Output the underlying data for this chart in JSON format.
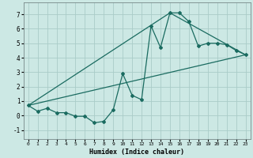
{
  "title": "",
  "xlabel": "Humidex (Indice chaleur)",
  "ylabel": "",
  "bg_color": "#cce8e4",
  "grid_color": "#aaccc8",
  "line_color": "#1a6b60",
  "xlim": [
    -0.5,
    23.5
  ],
  "ylim": [
    -1.6,
    7.8
  ],
  "xticks": [
    0,
    1,
    2,
    3,
    4,
    5,
    6,
    7,
    8,
    9,
    10,
    11,
    12,
    13,
    14,
    15,
    16,
    17,
    18,
    19,
    20,
    21,
    22,
    23
  ],
  "yticks": [
    -1,
    0,
    1,
    2,
    3,
    4,
    5,
    6,
    7
  ],
  "line1_x": [
    0,
    1,
    2,
    3,
    4,
    5,
    6,
    7,
    8,
    9,
    10,
    11,
    12,
    13,
    14,
    15,
    16,
    17,
    18,
    19,
    20,
    21,
    22,
    23
  ],
  "line1_y": [
    0.7,
    0.3,
    0.5,
    0.2,
    0.2,
    -0.05,
    -0.05,
    -0.5,
    -0.4,
    0.4,
    2.9,
    1.4,
    1.1,
    6.2,
    4.7,
    7.1,
    7.1,
    6.5,
    4.8,
    5.0,
    5.0,
    4.9,
    4.5,
    4.2
  ],
  "line2_x": [
    0,
    23
  ],
  "line2_y": [
    0.7,
    4.2
  ],
  "line3_x": [
    0,
    15,
    23
  ],
  "line3_y": [
    0.7,
    7.1,
    4.2
  ]
}
